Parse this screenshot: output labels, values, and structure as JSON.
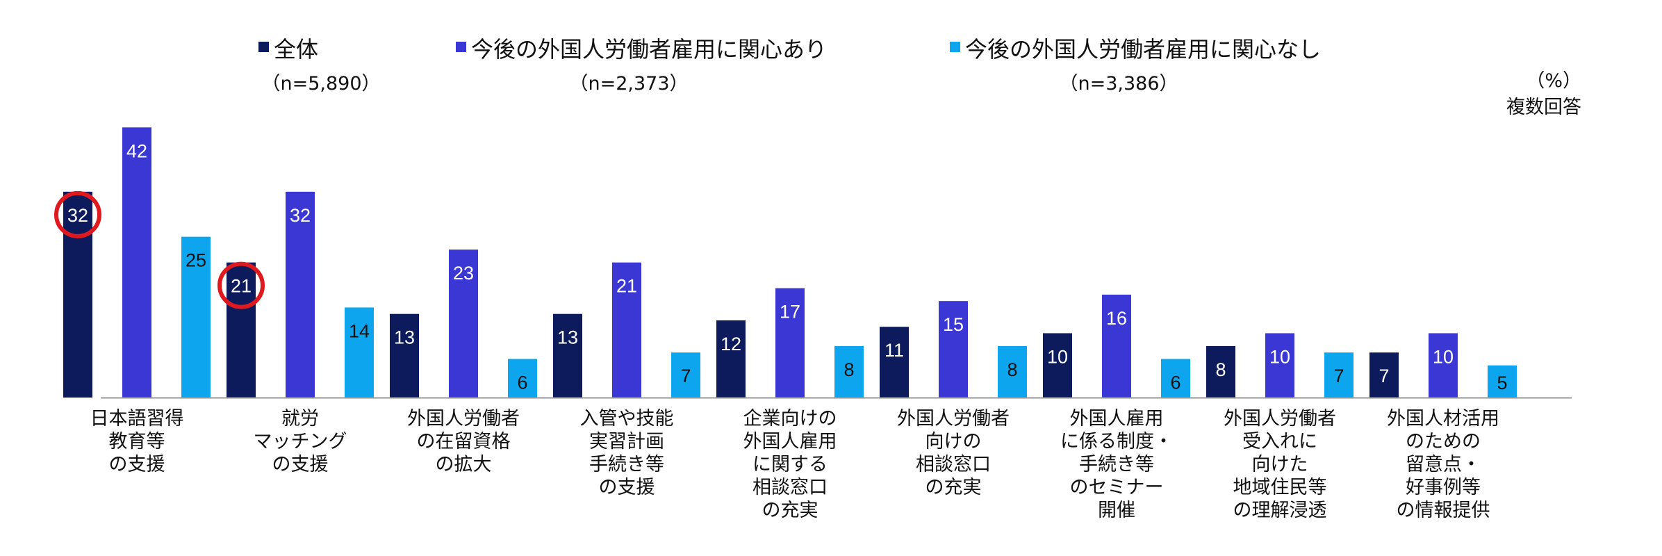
{
  "legend": [
    {
      "label": "全体",
      "n": "（n=5,890）",
      "color": "#0d1b5c"
    },
    {
      "label": "今後の外国人労働者雇用に関心あり",
      "n": "（n=2,373）",
      "color": "#3a37d4"
    },
    {
      "label": "今後の外国人労働者雇用に関心なし",
      "n": "（n=3,386）",
      "color": "#0ea5ef"
    }
  ],
  "unit_label": "（%）",
  "note_label": "複数回答",
  "chart_data": {
    "type": "bar",
    "categories": [
      [
        "日本語習得",
        "教育等",
        "の支援"
      ],
      [
        "就労",
        "マッチング",
        "の支援"
      ],
      [
        "外国人労働者",
        "の在留資格",
        "の拡大"
      ],
      [
        "入管や技能",
        "実習計画",
        "手続き等",
        "の支援"
      ],
      [
        "企業向けの",
        "外国人雇用",
        "に関する",
        "相談窓口",
        "の充実"
      ],
      [
        "外国人労働者",
        "向けの",
        "相談窓口",
        "の充実"
      ],
      [
        "外国人雇用",
        "に係る制度・",
        "手続き等",
        "のセミナー",
        "開催"
      ],
      [
        "外国人労働者",
        "受入れに",
        "向けた",
        "地域住民等",
        "の理解浸透"
      ],
      [
        "外国人材活用",
        "のための",
        "留意点・",
        "好事例等",
        "の情報提供"
      ]
    ],
    "series": [
      {
        "name": "全体",
        "values": [
          32,
          21,
          13,
          13,
          12,
          11,
          10,
          8,
          7
        ]
      },
      {
        "name": "今後の外国人労働者雇用に関心あり",
        "values": [
          42,
          32,
          23,
          21,
          17,
          15,
          16,
          10,
          10
        ]
      },
      {
        "name": "今後の外国人労働者雇用に関心なし",
        "values": [
          25,
          14,
          6,
          7,
          8,
          8,
          6,
          7,
          5
        ]
      }
    ],
    "highlighted": [
      {
        "series": 0,
        "category": 0
      },
      {
        "series": 0,
        "category": 1
      }
    ],
    "highlight_color": "#e0191e",
    "label_color_dark": "#ffffff",
    "label_color_light": "#111111",
    "ylim": [
      0,
      45
    ],
    "grid": false
  }
}
